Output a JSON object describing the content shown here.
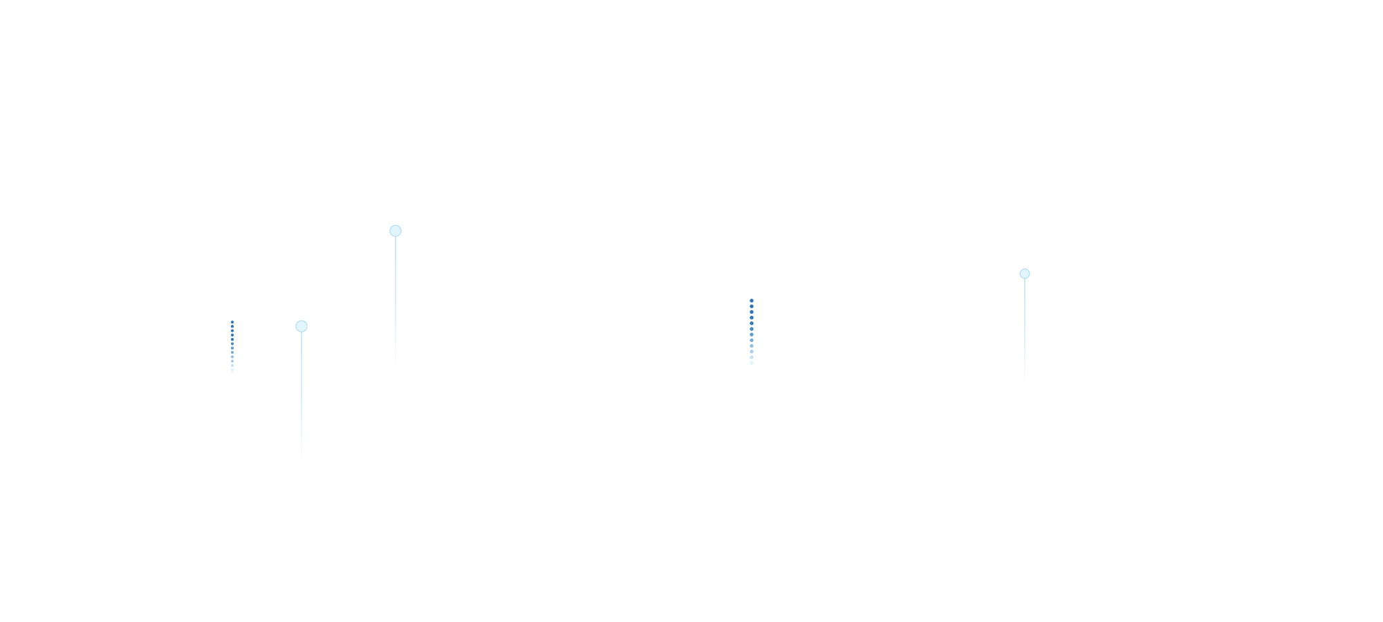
{
  "colors": {
    "background": "#ffffff",
    "dot_dark": "#2f75b5",
    "dot_light": "#e0f4fc",
    "pin_fill": "#e3f5fc",
    "pin_stroke": "#b5def2",
    "pin_line": "#b9dcf0"
  },
  "decorations": {
    "dot_columns": [
      {
        "name": "dot-column-left",
        "count": 12
      },
      {
        "name": "dot-column-center",
        "count": 12
      }
    ],
    "pins": [
      {
        "name": "pin-left-low"
      },
      {
        "name": "pin-left-high"
      },
      {
        "name": "pin-right"
      }
    ]
  }
}
